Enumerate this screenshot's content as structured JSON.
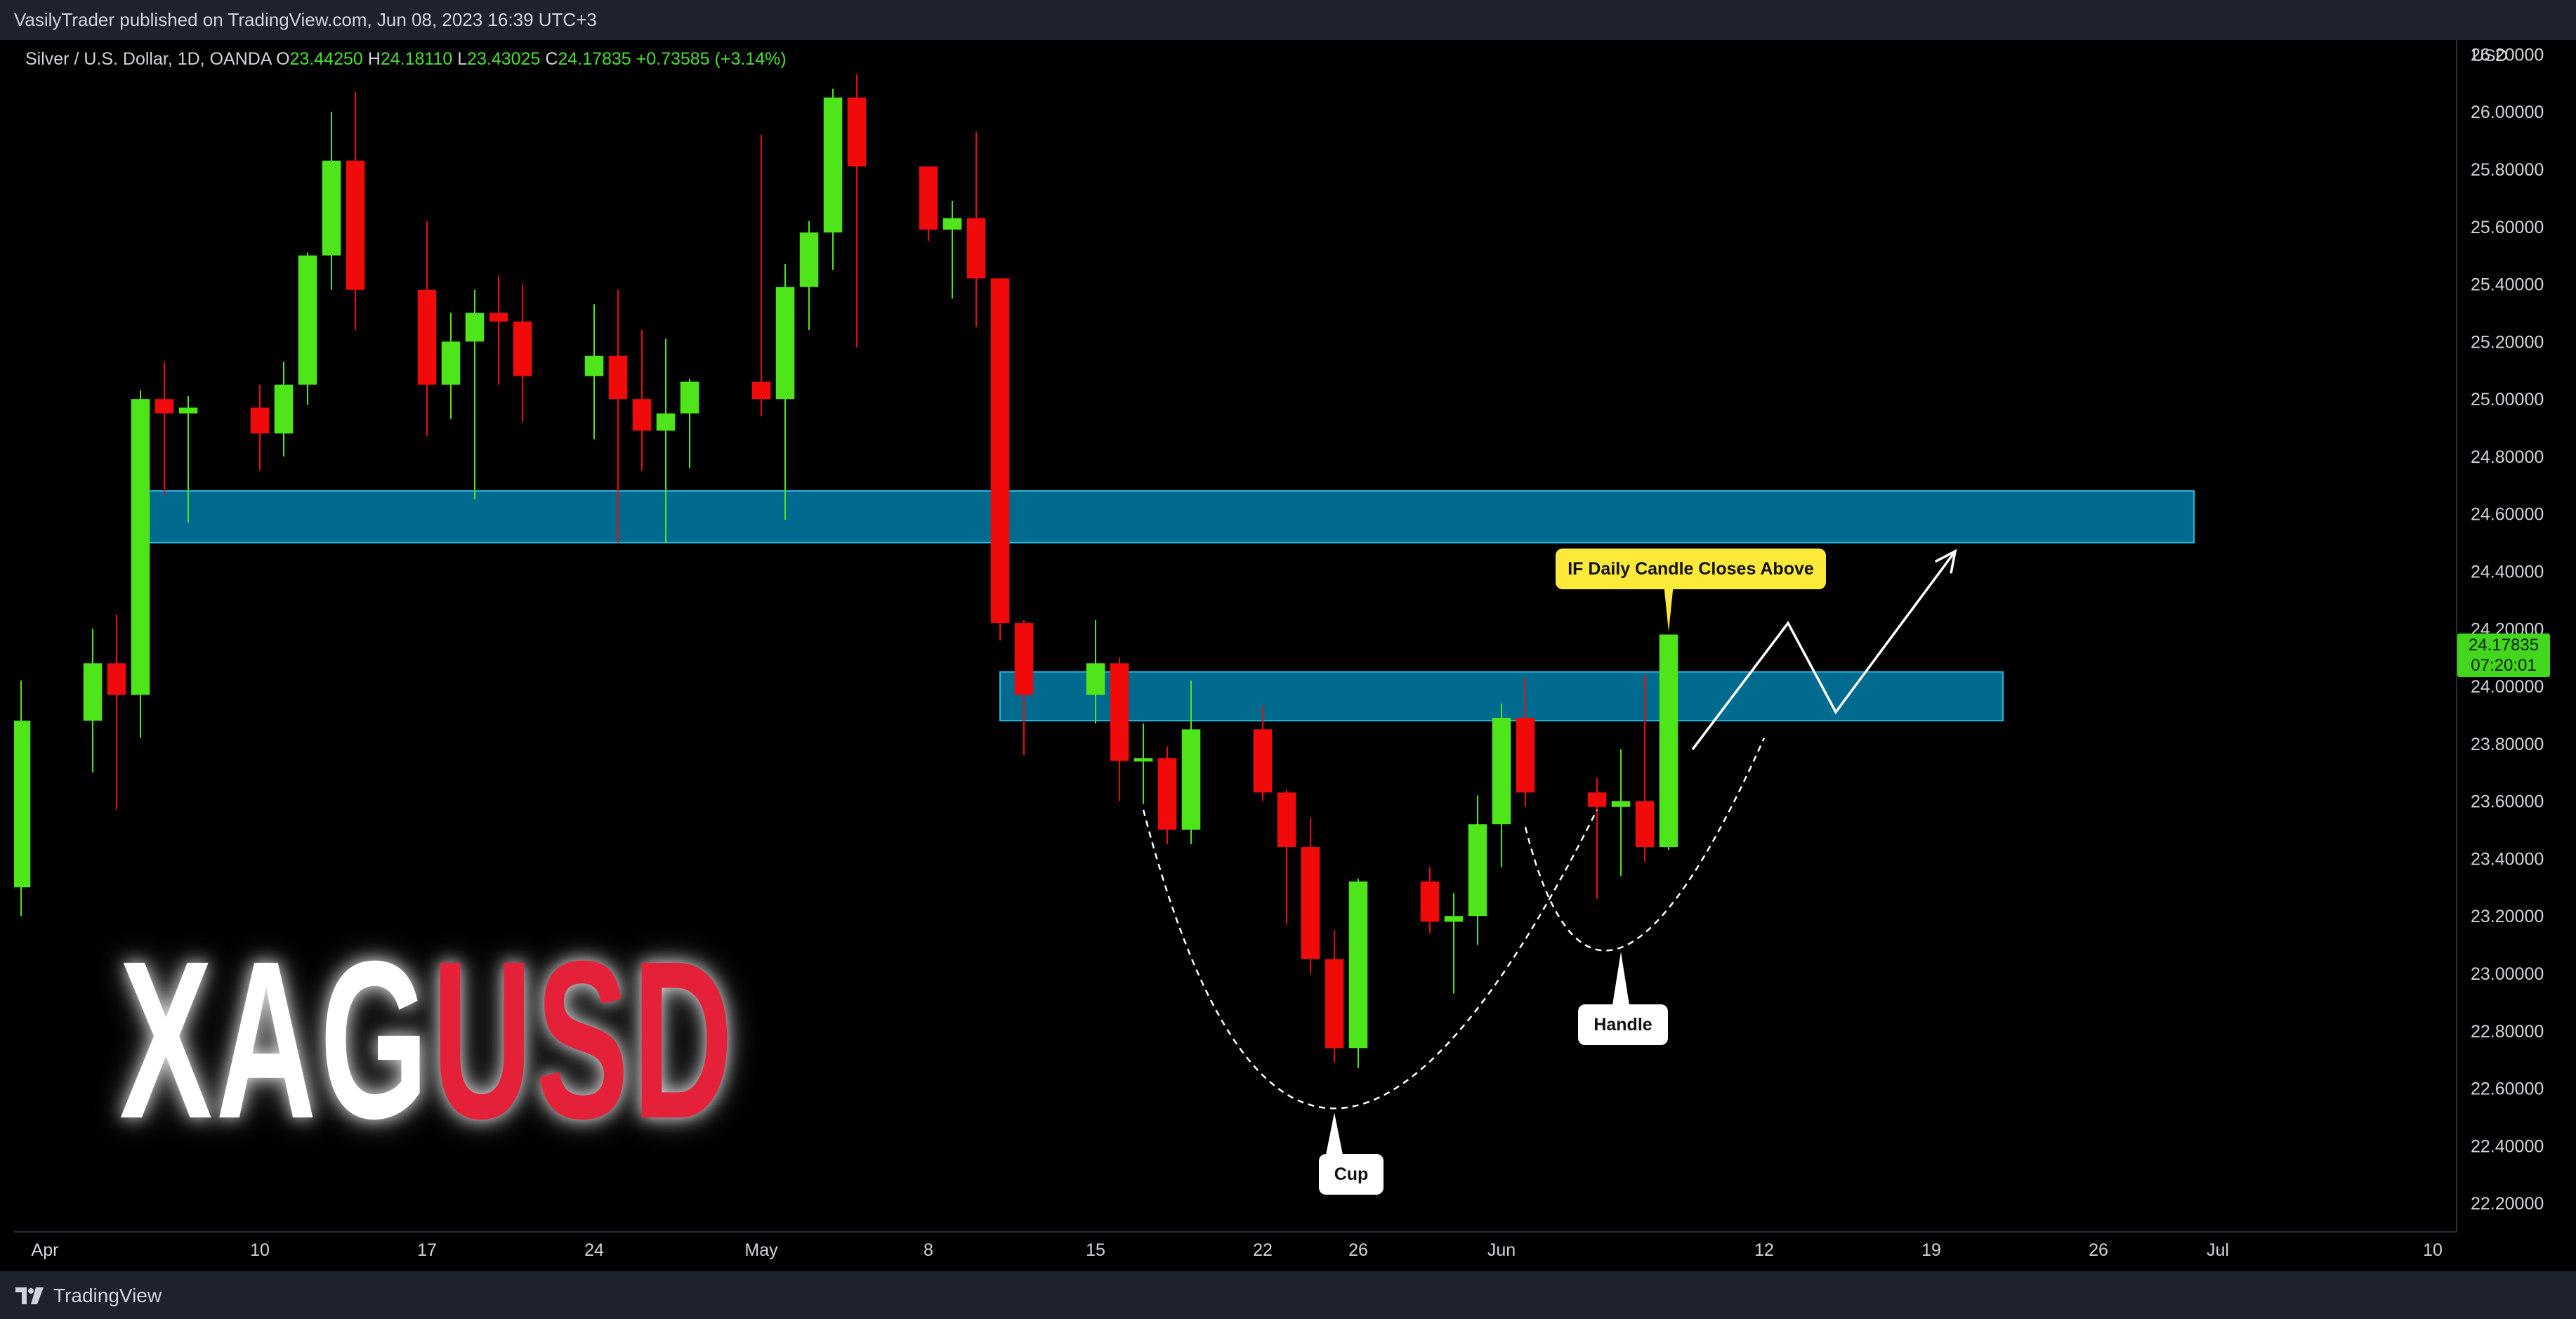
{
  "header": {
    "published_text": "VasilyTrader published on TradingView.com, Jun 08, 2023 16:39 UTC+3"
  },
  "legend": {
    "symbol": "Silver / U.S. Dollar, 1D, OANDA",
    "open_label": "O",
    "open_value": "23.44250",
    "high_label": "H",
    "high_value": "24.18110",
    "low_label": "L",
    "low_value": "23.43025",
    "close_label": "C",
    "close_value": "24.17835",
    "change": "+0.73585 (+3.14%)"
  },
  "price_axis": {
    "currency": "USD",
    "last_price": "24.17835",
    "countdown": "07:20:01"
  },
  "brand": {
    "logo_left": "XAG",
    "logo_right": "USD",
    "footer": "TradingView"
  },
  "annotations": {
    "breakout_label": "IF Daily Candle Closes Above",
    "handle_label": "Handle",
    "cup_label": "Cup"
  },
  "colors": {
    "up": "#4ee51b",
    "down": "#f00a0a",
    "zone": "#006b8f",
    "zone_border": "#2bb5d9",
    "callout_yellow": "#fce93a",
    "background": "#000000",
    "panel": "#1e222d"
  },
  "chart_data": {
    "type": "candlestick",
    "title": "Silver / U.S. Dollar, 1D, OANDA",
    "ylabel": "USD",
    "ylim": [
      22.1,
      26.25
    ],
    "y_ticks": [
      22.2,
      22.4,
      22.6,
      22.8,
      23.0,
      23.2,
      23.4,
      23.6,
      23.8,
      24.0,
      24.2,
      24.4,
      24.6,
      24.8,
      25.0,
      25.2,
      25.4,
      25.6,
      25.8,
      26.0,
      26.2
    ],
    "x_ticks": [
      {
        "date": "2023-04-01",
        "label": "Apr"
      },
      {
        "date": "2023-04-10",
        "label": "10"
      },
      {
        "date": "2023-04-17",
        "label": "17"
      },
      {
        "date": "2023-04-24",
        "label": "24"
      },
      {
        "date": "2023-05-01",
        "label": "May"
      },
      {
        "date": "2023-05-08",
        "label": "8"
      },
      {
        "date": "2023-05-15",
        "label": "15"
      },
      {
        "date": "2023-05-22",
        "label": "22"
      },
      {
        "date": "2023-05-26",
        "label": "26"
      },
      {
        "date": "2023-06-01",
        "label": "Jun"
      },
      {
        "date": "2023-06-12",
        "label": "12"
      },
      {
        "date": "2023-06-19",
        "label": "19"
      },
      {
        "date": "2023-06-26",
        "label": "26"
      },
      {
        "date": "2023-07-01",
        "label": "Jul"
      },
      {
        "date": "2023-07-10",
        "label": "10"
      }
    ],
    "x_range": [
      "2023-03-31",
      "2023-07-11"
    ],
    "candles": [
      {
        "date": "2023-03-31",
        "o": 23.3,
        "h": 24.02,
        "l": 23.2,
        "c": 23.88
      },
      {
        "date": "2023-04-03",
        "o": 23.88,
        "h": 24.2,
        "l": 23.7,
        "c": 24.08
      },
      {
        "date": "2023-04-04",
        "o": 24.08,
        "h": 24.25,
        "l": 23.57,
        "c": 23.97
      },
      {
        "date": "2023-04-05",
        "o": 23.97,
        "h": 25.03,
        "l": 23.82,
        "c": 25.0
      },
      {
        "date": "2023-04-06",
        "o": 25.0,
        "h": 25.13,
        "l": 24.67,
        "c": 24.95
      },
      {
        "date": "2023-04-07",
        "o": 24.95,
        "h": 25.01,
        "l": 24.57,
        "c": 24.97
      },
      {
        "date": "2023-04-10",
        "o": 24.97,
        "h": 25.05,
        "l": 24.75,
        "c": 24.88
      },
      {
        "date": "2023-04-11",
        "o": 24.88,
        "h": 25.13,
        "l": 24.8,
        "c": 25.05
      },
      {
        "date": "2023-04-12",
        "o": 25.05,
        "h": 25.51,
        "l": 24.98,
        "c": 25.5
      },
      {
        "date": "2023-04-13",
        "o": 25.5,
        "h": 26.0,
        "l": 25.38,
        "c": 25.83
      },
      {
        "date": "2023-04-14",
        "o": 25.83,
        "h": 26.07,
        "l": 25.24,
        "c": 25.38
      },
      {
        "date": "2023-04-17",
        "o": 25.38,
        "h": 25.62,
        "l": 24.87,
        "c": 25.05
      },
      {
        "date": "2023-04-18",
        "o": 25.05,
        "h": 25.3,
        "l": 24.93,
        "c": 25.2
      },
      {
        "date": "2023-04-19",
        "o": 25.2,
        "h": 25.38,
        "l": 24.65,
        "c": 25.3
      },
      {
        "date": "2023-04-20",
        "o": 25.3,
        "h": 25.43,
        "l": 25.05,
        "c": 25.27
      },
      {
        "date": "2023-04-21",
        "o": 25.27,
        "h": 25.4,
        "l": 24.92,
        "c": 25.08
      },
      {
        "date": "2023-04-24",
        "o": 25.08,
        "h": 25.33,
        "l": 24.86,
        "c": 25.15
      },
      {
        "date": "2023-04-25",
        "o": 25.15,
        "h": 25.38,
        "l": 24.5,
        "c": 25.0
      },
      {
        "date": "2023-04-26",
        "o": 25.0,
        "h": 25.24,
        "l": 24.75,
        "c": 24.89
      },
      {
        "date": "2023-04-27",
        "o": 24.89,
        "h": 25.21,
        "l": 24.5,
        "c": 24.95
      },
      {
        "date": "2023-04-28",
        "o": 24.95,
        "h": 25.07,
        "l": 24.76,
        "c": 25.06
      },
      {
        "date": "2023-05-01",
        "o": 25.06,
        "h": 25.92,
        "l": 24.94,
        "c": 25.0
      },
      {
        "date": "2023-05-02",
        "o": 25.0,
        "h": 25.47,
        "l": 24.58,
        "c": 25.39
      },
      {
        "date": "2023-05-03",
        "o": 25.39,
        "h": 25.62,
        "l": 25.24,
        "c": 25.58
      },
      {
        "date": "2023-05-04",
        "o": 25.58,
        "h": 26.08,
        "l": 25.45,
        "c": 26.05
      },
      {
        "date": "2023-05-05",
        "o": 26.05,
        "h": 26.13,
        "l": 25.18,
        "c": 25.81
      },
      {
        "date": "2023-05-08",
        "o": 25.81,
        "h": 25.78,
        "l": 25.55,
        "c": 25.59
      },
      {
        "date": "2023-05-09",
        "o": 25.59,
        "h": 25.69,
        "l": 25.35,
        "c": 25.63
      },
      {
        "date": "2023-05-10",
        "o": 25.63,
        "h": 25.93,
        "l": 25.25,
        "c": 25.42
      },
      {
        "date": "2023-05-11",
        "o": 25.42,
        "h": 25.42,
        "l": 24.16,
        "c": 24.22
      },
      {
        "date": "2023-05-12",
        "o": 24.22,
        "h": 24.23,
        "l": 23.76,
        "c": 23.97
      },
      {
        "date": "2023-05-15",
        "o": 23.97,
        "h": 24.23,
        "l": 23.87,
        "c": 24.08
      },
      {
        "date": "2023-05-16",
        "o": 24.08,
        "h": 24.1,
        "l": 23.6,
        "c": 23.74
      },
      {
        "date": "2023-05-17",
        "o": 23.74,
        "h": 23.87,
        "l": 23.59,
        "c": 23.75
      },
      {
        "date": "2023-05-18",
        "o": 23.75,
        "h": 23.79,
        "l": 23.45,
        "c": 23.5
      },
      {
        "date": "2023-05-19",
        "o": 23.5,
        "h": 24.02,
        "l": 23.45,
        "c": 23.85
      },
      {
        "date": "2023-05-22",
        "o": 23.85,
        "h": 23.93,
        "l": 23.6,
        "c": 23.63
      },
      {
        "date": "2023-05-23",
        "o": 23.63,
        "h": 23.64,
        "l": 23.17,
        "c": 23.44
      },
      {
        "date": "2023-05-24",
        "o": 23.44,
        "h": 23.54,
        "l": 23.0,
        "c": 23.05
      },
      {
        "date": "2023-05-25",
        "o": 23.05,
        "h": 23.15,
        "l": 22.69,
        "c": 22.74
      },
      {
        "date": "2023-05-26",
        "o": 22.74,
        "h": 23.33,
        "l": 22.67,
        "c": 23.32
      },
      {
        "date": "2023-05-29",
        "o": 23.32,
        "h": 23.37,
        "l": 23.14,
        "c": 23.18
      },
      {
        "date": "2023-05-30",
        "o": 23.18,
        "h": 23.28,
        "l": 22.93,
        "c": 23.2
      },
      {
        "date": "2023-05-31",
        "o": 23.2,
        "h": 23.62,
        "l": 23.1,
        "c": 23.52
      },
      {
        "date": "2023-06-01",
        "o": 23.52,
        "h": 23.94,
        "l": 23.37,
        "c": 23.89
      },
      {
        "date": "2023-06-02",
        "o": 23.89,
        "h": 24.03,
        "l": 23.58,
        "c": 23.63
      },
      {
        "date": "2023-06-05",
        "o": 23.63,
        "h": 23.68,
        "l": 23.26,
        "c": 23.58
      },
      {
        "date": "2023-06-06",
        "o": 23.58,
        "h": 23.78,
        "l": 23.34,
        "c": 23.6
      },
      {
        "date": "2023-06-07",
        "o": 23.6,
        "h": 24.04,
        "l": 23.39,
        "c": 23.44
      },
      {
        "date": "2023-06-08",
        "o": 23.44,
        "h": 24.18,
        "l": 23.43,
        "c": 24.18
      }
    ],
    "zones": [
      {
        "from_date": "2023-04-05",
        "to_date": "2023-06-30",
        "low": 24.5,
        "high": 24.68
      },
      {
        "from_date": "2023-05-11",
        "to_date": "2023-06-22",
        "low": 23.88,
        "high": 24.05
      }
    ],
    "cup_curve": [
      {
        "date": "2023-05-17",
        "y": 23.57
      },
      {
        "date": "2023-05-25",
        "y": 22.53
      },
      {
        "date": "2023-06-05",
        "y": 23.57
      }
    ],
    "handle_curve": [
      {
        "date": "2023-06-02",
        "y": 23.51
      },
      {
        "date": "2023-06-06",
        "y": 23.09
      },
      {
        "date": "2023-06-12",
        "y": 23.82
      }
    ],
    "projection_path": [
      {
        "date": "2023-06-09",
        "y": 23.78
      },
      {
        "date": "2023-06-13",
        "y": 24.22
      },
      {
        "date": "2023-06-15",
        "y": 23.91
      },
      {
        "date": "2023-06-20",
        "y": 24.47
      }
    ],
    "callout_anchors": {
      "breakout": {
        "date": "2023-06-08",
        "y": 24.18
      },
      "handle": {
        "date": "2023-06-06",
        "y": 23.09
      },
      "cup": {
        "date": "2023-05-25",
        "y": 22.53
      }
    }
  }
}
